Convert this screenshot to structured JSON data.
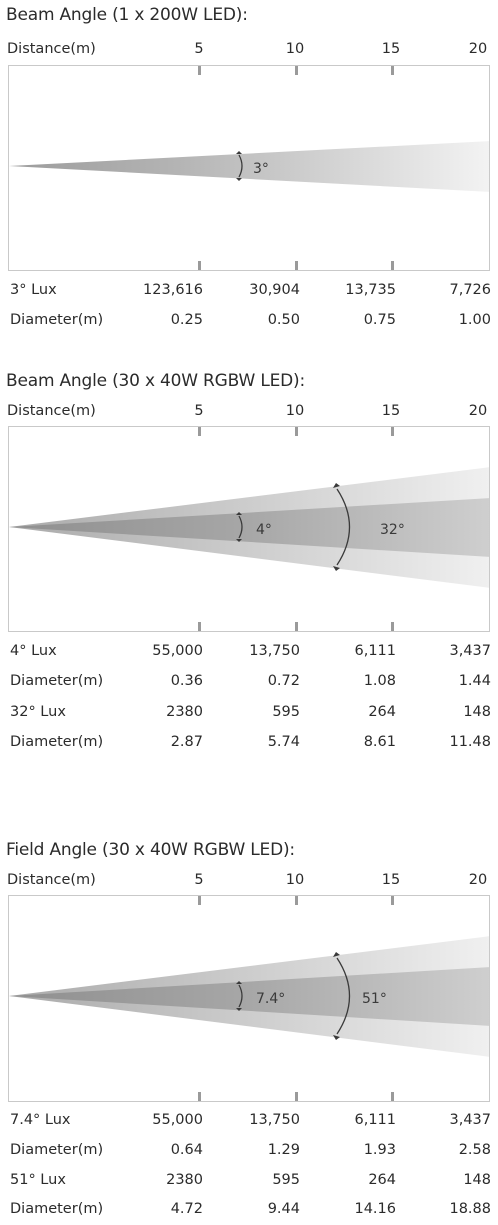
{
  "distance_axis": {
    "label": "Distance(m)",
    "ticks": [
      "5",
      "10",
      "15",
      "20"
    ]
  },
  "sections": [
    {
      "title": "Beam Angle (1 x 200W LED):",
      "cones": [
        {
          "angle": 3,
          "label": "3°"
        }
      ],
      "rows": [
        {
          "label": "3° Lux",
          "values": [
            "123,616",
            "30,904",
            "13,735",
            "7,726"
          ]
        },
        {
          "label": "Diameter(m)",
          "values": [
            "0.25",
            "0.50",
            "0.75",
            "1.00"
          ]
        }
      ]
    },
    {
      "title": "Beam Angle (30 x 40W RGBW LED):",
      "cones": [
        {
          "angle": 4,
          "label": "4°"
        },
        {
          "angle": 32,
          "label": "32°"
        }
      ],
      "rows": [
        {
          "label": "4° Lux",
          "values": [
            "55,000",
            "13,750",
            "6,111",
            "3,437"
          ]
        },
        {
          "label": "Diameter(m)",
          "values": [
            "0.36",
            "0.72",
            "1.08",
            "1.44"
          ]
        },
        {
          "label": "32° Lux",
          "values": [
            "2380",
            "595",
            "264",
            "148"
          ]
        },
        {
          "label": "Diameter(m)",
          "values": [
            "2.87",
            "5.74",
            "8.61",
            "11.48"
          ]
        }
      ]
    },
    {
      "title": "Field Angle (30 x 40W RGBW LED):",
      "cones": [
        {
          "angle": 7.4,
          "label": "7.4°"
        },
        {
          "angle": 51,
          "label": "51°"
        }
      ],
      "rows": [
        {
          "label": "7.4° Lux",
          "values": [
            "55,000",
            "13,750",
            "6,111",
            "3,437"
          ]
        },
        {
          "label": "Diameter(m)",
          "values": [
            "0.64",
            "1.29",
            "1.93",
            "2.58"
          ]
        },
        {
          "label": "51° Lux",
          "values": [
            "2380",
            "595",
            "264",
            "148"
          ]
        },
        {
          "label": "Diameter(m)",
          "values": [
            "4.72",
            "9.44",
            "14.16",
            "18.88"
          ]
        }
      ]
    }
  ],
  "colors": {
    "panel_border": "#c9c9c9",
    "beam_dark": "#a9a9a9",
    "beam_light": "#f2f2f2",
    "tick": "#9a9a9a"
  }
}
